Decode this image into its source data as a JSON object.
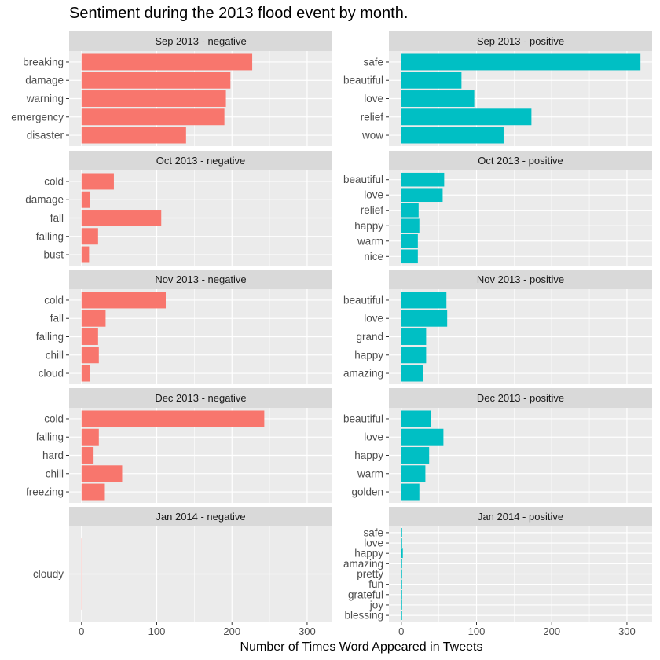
{
  "title": "Sentiment during the 2013 flood event by month.",
  "xlabel": "Number of Times Word Appeared in Tweets",
  "colors": {
    "negative": "#F8766D",
    "positive": "#00BFC4",
    "panel_bg": "#EBEBEB",
    "strip_bg": "#D9D9D9",
    "grid": "#FFFFFF"
  },
  "chart_data": {
    "type": "bar",
    "orientation": "horizontal",
    "facet_layout": "5 rows x 2 columns",
    "xlim": [
      0,
      320
    ],
    "x_ticks": [
      0,
      100,
      200,
      300
    ],
    "panels": [
      {
        "label": "Sep 2013 - negative",
        "sentiment": "negative",
        "categories": [
          "breaking",
          "damage",
          "warning",
          "emergency",
          "disaster"
        ],
        "values": [
          227,
          198,
          192,
          190,
          139
        ]
      },
      {
        "label": "Sep 2013 - positive",
        "sentiment": "positive",
        "categories": [
          "safe",
          "beautiful",
          "love",
          "relief",
          "wow"
        ],
        "values": [
          318,
          80,
          97,
          173,
          136
        ]
      },
      {
        "label": "Oct 2013 - negative",
        "sentiment": "negative",
        "categories": [
          "cold",
          "damage",
          "fall",
          "falling",
          "bust"
        ],
        "values": [
          43,
          11,
          106,
          22,
          10
        ]
      },
      {
        "label": "Oct 2013 - positive",
        "sentiment": "positive",
        "categories": [
          "beautiful",
          "love",
          "relief",
          "happy",
          "warm",
          "nice"
        ],
        "values": [
          57,
          55,
          23,
          24,
          22,
          22
        ]
      },
      {
        "label": "Nov 2013 - negative",
        "sentiment": "negative",
        "categories": [
          "cold",
          "fall",
          "falling",
          "chill",
          "cloud"
        ],
        "values": [
          112,
          32,
          22,
          23,
          11
        ]
      },
      {
        "label": "Nov 2013 - positive",
        "sentiment": "positive",
        "categories": [
          "beautiful",
          "love",
          "grand",
          "happy",
          "amazing"
        ],
        "values": [
          60,
          61,
          33,
          33,
          29
        ]
      },
      {
        "label": "Dec 2013 - negative",
        "sentiment": "negative",
        "categories": [
          "cold",
          "falling",
          "hard",
          "chill",
          "freezing"
        ],
        "values": [
          243,
          23,
          16,
          54,
          31
        ]
      },
      {
        "label": "Dec 2013 - positive",
        "sentiment": "positive",
        "categories": [
          "beautiful",
          "love",
          "happy",
          "warm",
          "golden"
        ],
        "values": [
          39,
          56,
          37,
          32,
          24
        ]
      },
      {
        "label": "Jan 2014 - negative",
        "sentiment": "negative",
        "categories": [
          "cloudy"
        ],
        "values": [
          1
        ]
      },
      {
        "label": "Jan 2014 - positive",
        "sentiment": "positive",
        "categories": [
          "safe",
          "love",
          "happy",
          "amazing",
          "pretty",
          "fun",
          "grateful",
          "joy",
          "blessing"
        ],
        "values": [
          1,
          1,
          2,
          1,
          1,
          1,
          1,
          1,
          1
        ]
      }
    ]
  }
}
